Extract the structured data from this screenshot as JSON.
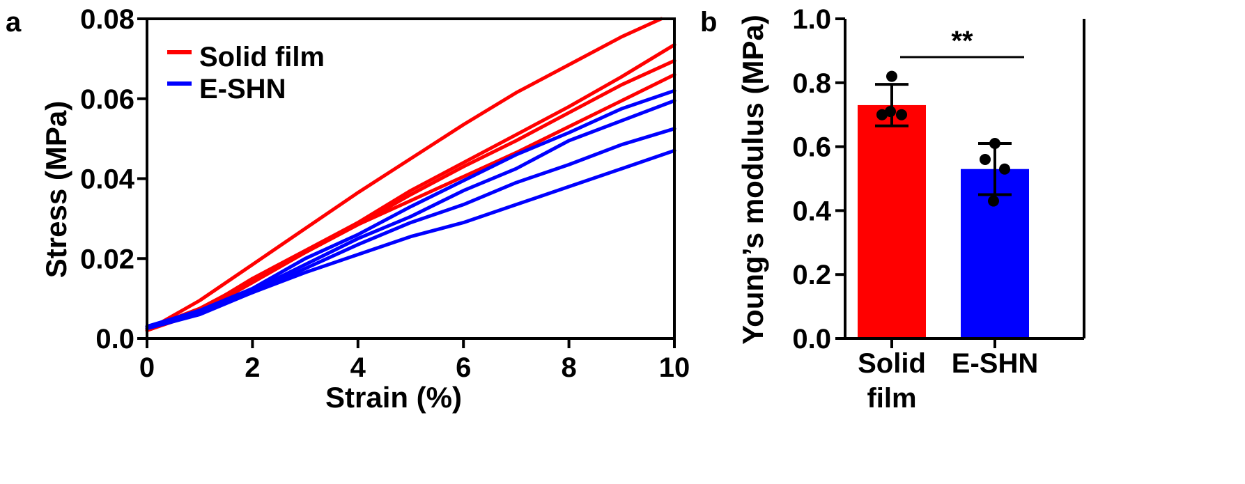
{
  "chart_data": [
    {
      "panel": "a",
      "type": "line",
      "title": "",
      "xlabel": "Strain (%)",
      "ylabel": "Stress (MPa)",
      "xlim": [
        0,
        10
      ],
      "ylim": [
        0,
        0.08
      ],
      "xticks": [
        "0",
        "2",
        "4",
        "6",
        "8",
        "10"
      ],
      "yticks": [
        "0.0",
        "0.02",
        "0.04",
        "0.06",
        "0.08"
      ],
      "grid": false,
      "legend": "top-left",
      "legend_entries": [
        {
          "label": "Solid film",
          "color": "#ff0000"
        },
        {
          "label": "E-SHN",
          "color": "#0000ff"
        }
      ],
      "series": [
        {
          "group": "Solid film",
          "color": "#ff0000",
          "x": [
            0,
            1,
            2,
            3,
            4,
            5,
            6,
            7,
            8,
            9,
            9.75
          ],
          "y": [
            0.002,
            0.0095,
            0.0185,
            0.0275,
            0.0365,
            0.045,
            0.0535,
            0.0615,
            0.0685,
            0.0755,
            0.08
          ]
        },
        {
          "group": "Solid film",
          "color": "#ff0000",
          "x": [
            0,
            1,
            2,
            3,
            4,
            5,
            6,
            7,
            8,
            9,
            10
          ],
          "y": [
            0.002,
            0.007,
            0.015,
            0.022,
            0.029,
            0.037,
            0.044,
            0.051,
            0.058,
            0.0655,
            0.0735
          ]
        },
        {
          "group": "Solid film",
          "color": "#ff0000",
          "x": [
            0,
            1,
            2,
            3,
            4,
            5,
            6,
            7,
            8,
            9,
            10
          ],
          "y": [
            0.0025,
            0.0075,
            0.0145,
            0.0215,
            0.0285,
            0.036,
            0.043,
            0.0495,
            0.0565,
            0.0635,
            0.0695
          ]
        },
        {
          "group": "Solid film",
          "color": "#ff0000",
          "x": [
            0,
            1,
            2,
            3,
            4,
            5,
            6,
            7,
            8,
            9,
            10
          ],
          "y": [
            0.002,
            0.0065,
            0.014,
            0.0215,
            0.0285,
            0.0345,
            0.0405,
            0.0465,
            0.053,
            0.0595,
            0.066
          ]
        },
        {
          "group": "E-SHN",
          "color": "#0000ff",
          "x": [
            0,
            1,
            2,
            3,
            4,
            5,
            6,
            7,
            8,
            9,
            10
          ],
          "y": [
            0.003,
            0.007,
            0.0125,
            0.02,
            0.026,
            0.033,
            0.0395,
            0.046,
            0.0515,
            0.0575,
            0.062
          ]
        },
        {
          "group": "E-SHN",
          "color": "#0000ff",
          "x": [
            0,
            1,
            2,
            3,
            4,
            5,
            6,
            7,
            8,
            9,
            10
          ],
          "y": [
            0.003,
            0.0065,
            0.012,
            0.0185,
            0.025,
            0.0305,
            0.037,
            0.0425,
            0.0495,
            0.0545,
            0.0595
          ]
        },
        {
          "group": "E-SHN",
          "color": "#0000ff",
          "x": [
            0,
            1,
            2,
            3,
            4,
            5,
            6,
            7,
            8,
            9,
            10
          ],
          "y": [
            0.0025,
            0.006,
            0.0115,
            0.0175,
            0.0235,
            0.029,
            0.0335,
            0.039,
            0.0435,
            0.0485,
            0.0525
          ]
        },
        {
          "group": "E-SHN",
          "color": "#0000ff",
          "x": [
            0,
            1,
            2,
            3,
            4,
            5,
            6,
            7,
            8,
            9,
            10
          ],
          "y": [
            0.003,
            0.0065,
            0.0115,
            0.0165,
            0.021,
            0.0255,
            0.029,
            0.0335,
            0.038,
            0.0425,
            0.047
          ]
        }
      ]
    },
    {
      "panel": "b",
      "type": "bar",
      "title": "",
      "xlabel": "",
      "ylabel": "Young’s modulus (MPa)",
      "ylim": [
        0,
        1.0
      ],
      "yticks": [
        "0.0",
        "0.2",
        "0.4",
        "0.6",
        "0.8",
        "1.0"
      ],
      "grid": false,
      "categories": [
        "Solid film",
        "E-SHN"
      ],
      "category_lines": [
        [
          "Solid",
          "film"
        ],
        [
          "E-SHN"
        ]
      ],
      "values": [
        0.73,
        0.53
      ],
      "errors": [
        0.065,
        0.08
      ],
      "colors": [
        "#ff0000",
        "#0000ff"
      ],
      "points": [
        [
          0.82,
          0.7,
          0.7,
          0.71
        ],
        [
          0.61,
          0.56,
          0.53,
          0.43
        ]
      ],
      "significance": "**"
    }
  ]
}
